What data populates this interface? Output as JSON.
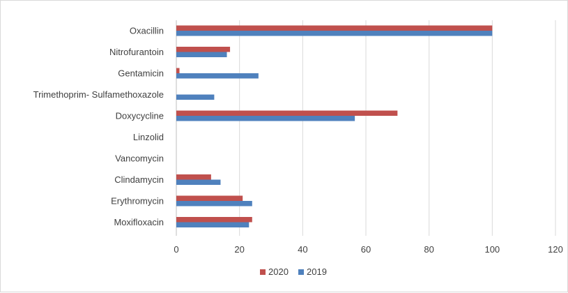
{
  "chart_data": {
    "type": "bar",
    "orientation": "horizontal",
    "categories": [
      "Oxacillin",
      "Nitrofurantoin",
      "Gentamicin",
      "Trimethoprim- Sulfamethoxazole",
      "Doxycycline",
      "Linzolid",
      "Vancomycin",
      "Clindamycin",
      "Erythromycin",
      "Moxifloxacin"
    ],
    "series": [
      {
        "name": "2020",
        "color": "#c0504d",
        "values": [
          100,
          17,
          1,
          0,
          70,
          0,
          0,
          11,
          21,
          24
        ]
      },
      {
        "name": "2019",
        "color": "#4f81bd",
        "values": [
          100,
          16,
          26,
          12,
          56.5,
          0,
          0,
          14,
          24,
          23
        ]
      }
    ],
    "xlim": [
      0,
      120
    ],
    "xticks": [
      0,
      20,
      40,
      60,
      80,
      100,
      120
    ],
    "grid": "vertical",
    "legend": "bottom",
    "title": "",
    "xlabel": "",
    "ylabel": ""
  }
}
